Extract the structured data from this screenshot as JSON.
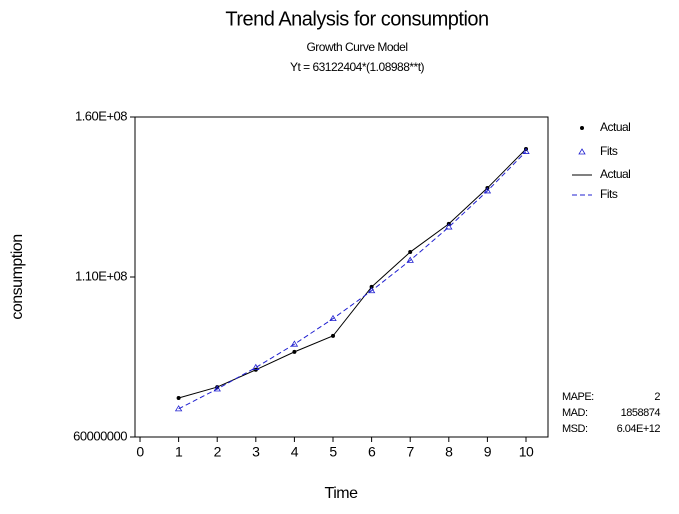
{
  "chart_data": {
    "type": "line",
    "title": "Trend Analysis for consumption",
    "subtitle": "Growth Curve Model",
    "equation": "Yt = 63122404*(1.08988**t)",
    "x_label": "Time",
    "y_label": "consumption",
    "x": [
      1,
      2,
      3,
      4,
      5,
      6,
      7,
      8,
      9,
      10
    ],
    "series": [
      {
        "name": "Actual",
        "color": "#000000",
        "marker": "dot",
        "dash": false,
        "values": [
          72200000,
          75600000,
          81000000,
          86600000,
          91600000,
          106900000,
          117800000,
          126600000,
          137800000,
          150000000
        ]
      },
      {
        "name": "Fits",
        "color": "#2020d0",
        "marker": "triangle",
        "dash": true,
        "values": [
          68800000,
          75000000,
          81700000,
          89000000,
          97000000,
          105700000,
          115200000,
          125600000,
          136900000,
          149200000
        ]
      }
    ],
    "xlim": [
      -0.13,
      10.57
    ],
    "xticks": [
      0,
      1,
      2,
      3,
      4,
      5,
      6,
      7,
      8,
      9,
      10
    ],
    "ylim": [
      60000000,
      160000000
    ],
    "yticks": [
      60000000,
      {
        "value": 110000000,
        "label": "1.10E+08"
      },
      {
        "value": 160000000,
        "label": "1.60E+08"
      }
    ],
    "stats": [
      {
        "label": "MAPE:",
        "value": 2
      },
      {
        "label": "MAD:",
        "value": 1858874
      },
      {
        "label": "MSD:",
        "value": "6.04E+12"
      }
    ]
  }
}
